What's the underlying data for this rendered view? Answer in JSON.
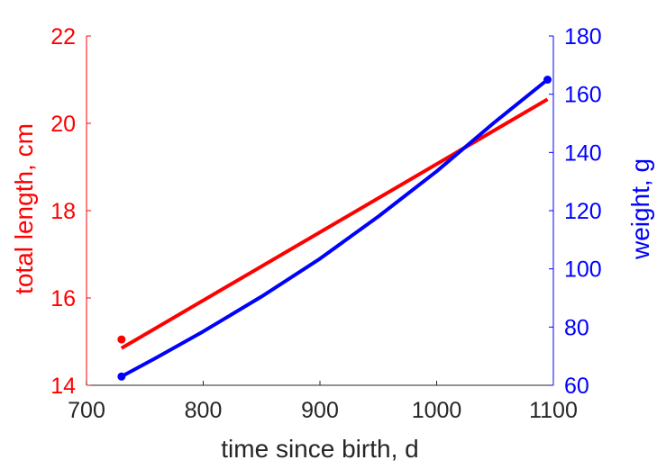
{
  "chart_data": {
    "type": "line",
    "xlabel": "time since birth, d",
    "ylabel_left": "total length, cm",
    "ylabel_right": "weight, g",
    "xlim": [
      700,
      1100
    ],
    "xticks": [
      700,
      800,
      900,
      1000,
      1100
    ],
    "ylim_left": [
      14,
      22
    ],
    "yticks_left": [
      14,
      16,
      18,
      20,
      22
    ],
    "ylim_right": [
      60,
      180
    ],
    "yticks_right": [
      60,
      80,
      100,
      120,
      140,
      160,
      180
    ],
    "grid": false,
    "colors": {
      "left": "#ff0000",
      "right": "#0000ff",
      "xaxis": "#262626"
    },
    "series": [
      {
        "axis": "left",
        "color": "#ff0000",
        "x": [
          730,
          1095
        ],
        "y": [
          14.85,
          20.55
        ]
      },
      {
        "axis": "right",
        "color": "#0000ff",
        "x": [
          730,
          760,
          800,
          850,
          900,
          950,
          1000,
          1050,
          1095
        ],
        "y": [
          63,
          69.5,
          78.5,
          90.5,
          103.5,
          118,
          133.5,
          150.5,
          165
        ]
      }
    ],
    "points": [
      {
        "axis": "left",
        "color": "#ff0000",
        "x": 730,
        "y": 15.05
      },
      {
        "axis": "right",
        "color": "#0000ff",
        "x": 730,
        "y": 63
      },
      {
        "axis": "right",
        "color": "#0000ff",
        "x": 1095,
        "y": 165
      }
    ]
  }
}
